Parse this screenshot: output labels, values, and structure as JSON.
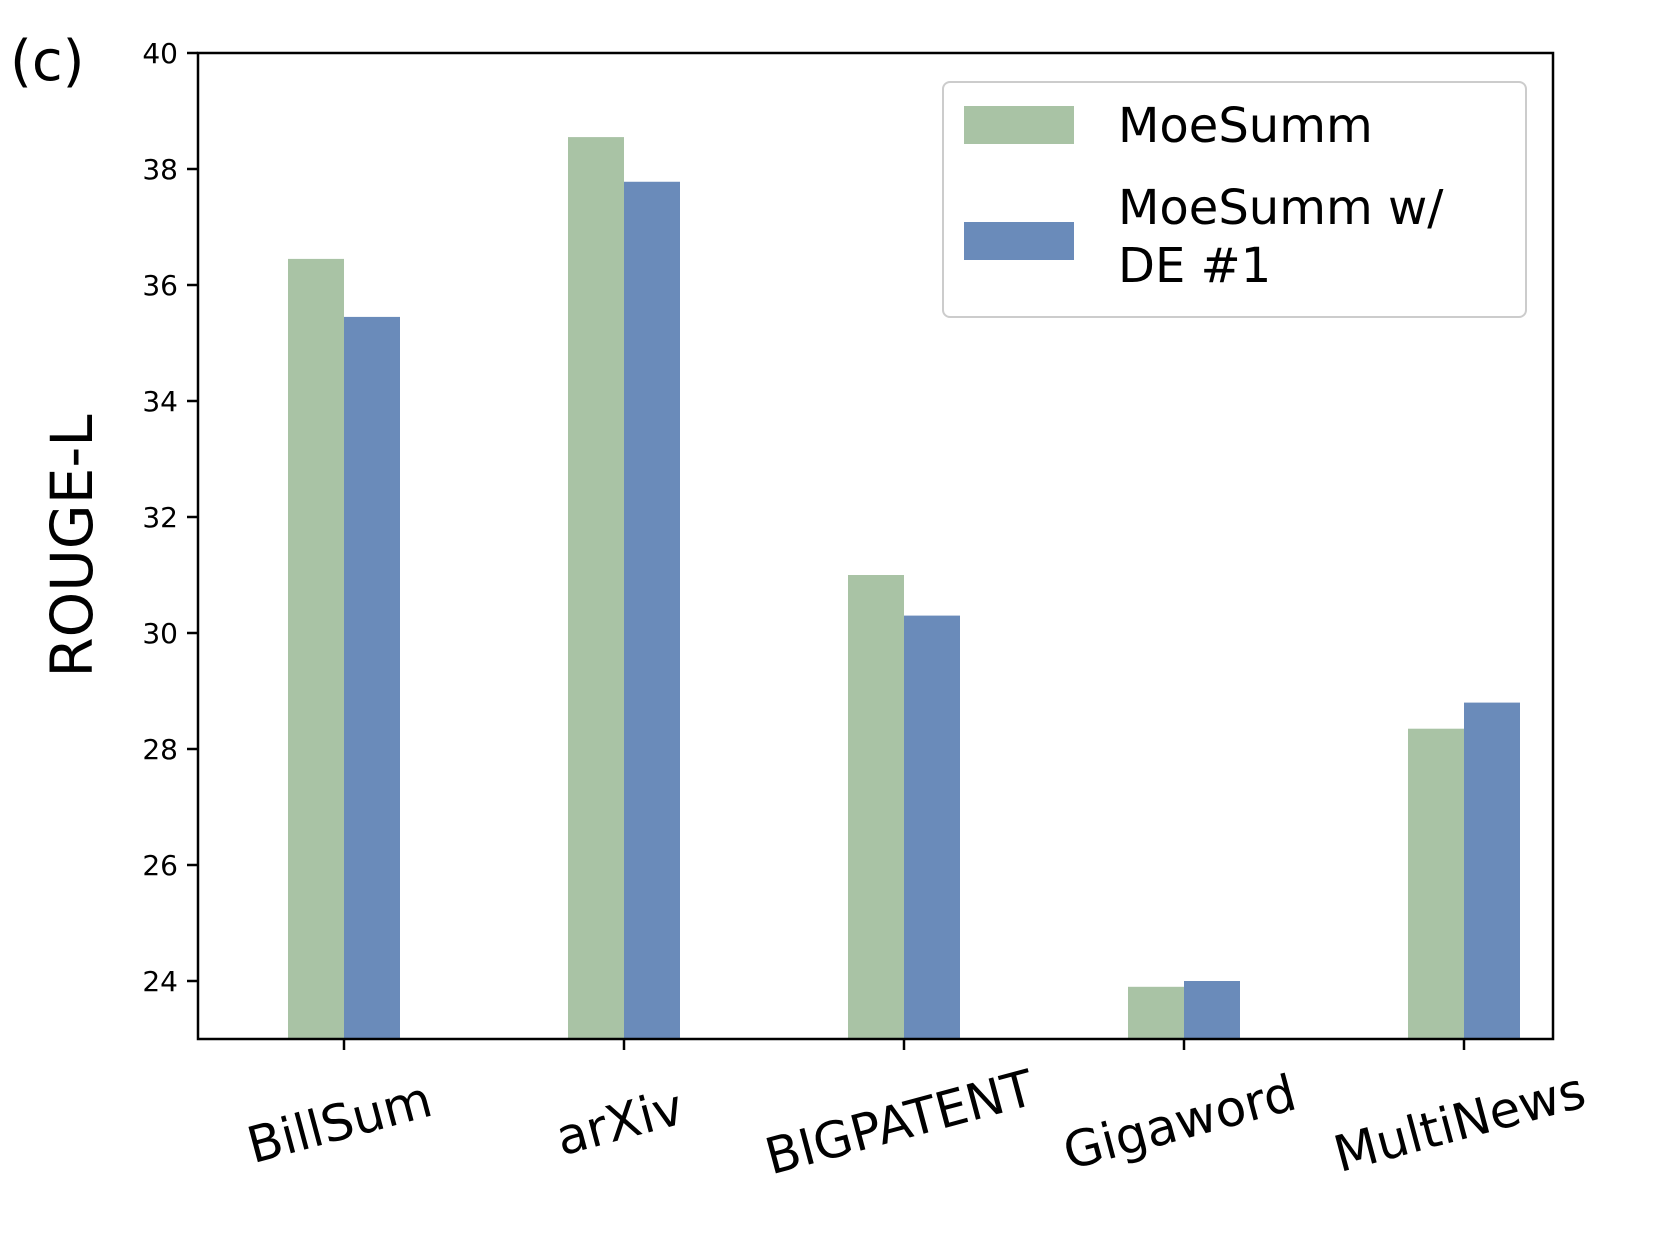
{
  "panel_label": "(c)",
  "colors": {
    "moesumm": "#a9c3a5",
    "moesumm_de1": "#6a8bba"
  },
  "chart_data": {
    "type": "bar",
    "title": "",
    "xlabel": "",
    "ylabel": "ROUGE-L",
    "ylim": [
      23,
      40
    ],
    "yticks": [
      24,
      26,
      28,
      30,
      32,
      34,
      36,
      38,
      40
    ],
    "categories": [
      "BillSum",
      "arXiv",
      "BIGPATENT",
      "Gigaword",
      "MultiNews"
    ],
    "series": [
      {
        "name": "MoeSumm",
        "values": [
          36.45,
          38.55,
          31.0,
          23.9,
          28.35
        ]
      },
      {
        "name": "MoeSumm w/\nDE #1",
        "values": [
          35.45,
          37.78,
          30.3,
          24.0,
          28.8
        ]
      }
    ],
    "grid": false,
    "legend": "top-right"
  }
}
